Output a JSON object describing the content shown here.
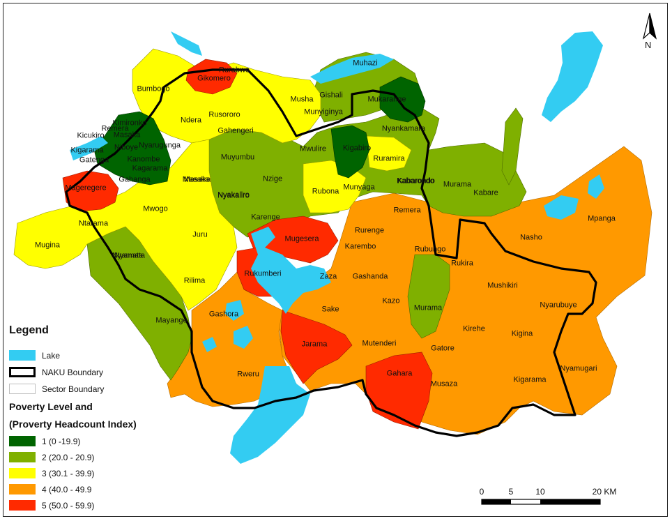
{
  "legend": {
    "title": "Legend",
    "items": [
      {
        "label": "Lake",
        "color": "#33ccf2"
      },
      {
        "label": "NAKU Boundary",
        "color": "#000000"
      },
      {
        "label": "Sector Boundary",
        "color": "#bfbfbf"
      }
    ]
  },
  "poverty_legend": {
    "title_line1": "Poverty Level and",
    "title_line2": "(Proverty Headcount Index)",
    "items": [
      {
        "label": "1 (0 -19.9)",
        "color": "#006400"
      },
      {
        "label": "2 (20.0 - 20.9)",
        "color": "#7fb000"
      },
      {
        "label": "3 (30.1 - 39.9)",
        "color": "#ffff00"
      },
      {
        "label": "4 (40.0 - 49.9",
        "color": "#ff9900"
      },
      {
        "label": "5 (50.0 - 59.9)",
        "color": "#ff2a00"
      }
    ]
  },
  "north_arrow": {
    "label": "N",
    "icon": "north-arrow-icon"
  },
  "scale_bar": {
    "ticks": [
      "0",
      "5",
      "10",
      "20 KM"
    ]
  },
  "sectors": [
    {
      "name": "Kigarama",
      "level": 4
    },
    {
      "name": "Gahara",
      "level": 5
    },
    {
      "name": "Jarama",
      "level": 5
    },
    {
      "name": "Gikomero",
      "level": 5
    },
    {
      "name": "Masaka",
      "level": 3
    },
    {
      "name": "Mugesera",
      "level": 5
    },
    {
      "name": "Rukumberi",
      "level": 5
    },
    {
      "name": "Muhazi",
      "level": 2
    },
    {
      "name": "Mukarange",
      "level": 1
    },
    {
      "name": "Nyamata",
      "level": 2
    },
    {
      "name": "Mpanga",
      "level": 4
    },
    {
      "name": "Nasho",
      "level": 4
    },
    {
      "name": "Rusororo",
      "level": 3
    },
    {
      "name": "Gahengeri",
      "level": 3
    },
    {
      "name": "Rubona",
      "level": 3
    },
    {
      "name": "Kigabiro",
      "level": 1
    },
    {
      "name": "Munyaga",
      "level": 3
    },
    {
      "name": "Ruramira",
      "level": 3
    },
    {
      "name": "Mwulire",
      "level": 2
    },
    {
      "name": "Nzige",
      "level": 2
    },
    {
      "name": "Karenge",
      "level": 2
    },
    {
      "name": "Nyakaliro",
      "level": 2
    },
    {
      "name": "Muyumbu",
      "level": 2
    },
    {
      "name": "Mwogo",
      "level": 3
    },
    {
      "name": "Juru",
      "level": 3
    },
    {
      "name": "Rilima",
      "level": 3
    },
    {
      "name": "Ntarama",
      "level": 3
    },
    {
      "name": "Mugina",
      "level": 3
    },
    {
      "name": "Mayange",
      "level": 2
    },
    {
      "name": "Gashora",
      "level": 4
    },
    {
      "name": "Rweru",
      "level": 4
    },
    {
      "name": "Zaza",
      "level": 4
    },
    {
      "name": "Sake",
      "level": 4
    },
    {
      "name": "Kazo",
      "level": 4
    },
    {
      "name": "Gashanda",
      "level": 4
    },
    {
      "name": "Karembo",
      "level": 4
    },
    {
      "name": "Rurenge",
      "level": 4
    },
    {
      "name": "Remera",
      "level": 4
    },
    {
      "name": "Kabarondo",
      "level": 2
    },
    {
      "name": "Murama",
      "level": 2
    },
    {
      "name": "Kabare",
      "level": 2
    },
    {
      "name": "Rukira",
      "level": 4
    },
    {
      "name": "Mushikiri",
      "level": 4
    },
    {
      "name": "Nyarubuye",
      "level": 4
    },
    {
      "name": "Kirehe",
      "level": 4
    },
    {
      "name": "Kigina",
      "level": 4
    },
    {
      "name": "Gatore",
      "level": 4
    },
    {
      "name": "Musaza",
      "level": 4
    },
    {
      "name": "Nyamugari",
      "level": 4
    },
    {
      "name": "Mutenderi",
      "level": 4
    },
    {
      "name": "Nyankamara",
      "level": 2
    },
    {
      "name": "Gishali",
      "level": 2
    },
    {
      "name": "Munyiginya",
      "level": 3
    },
    {
      "name": "Musha",
      "level": 3
    },
    {
      "name": "Rubungo",
      "level": 2
    },
    {
      "name": "Rurabwe",
      "level": 3
    },
    {
      "name": "Bumbogo",
      "level": 3
    },
    {
      "name": "Ndera",
      "level": 3
    },
    {
      "name": "Gahanga",
      "level": 4
    },
    {
      "name": "Kagarama",
      "level": 1
    },
    {
      "name": "Kanombe",
      "level": 1
    },
    {
      "name": "Nyarugunga",
      "level": 1
    },
    {
      "name": "Niboye",
      "level": 1
    },
    {
      "name": "Kimironko",
      "level": 1
    },
    {
      "name": "Remera",
      "level": 1
    },
    {
      "name": "Kicukiro",
      "level": 1
    },
    {
      "name": "Kigarama",
      "level": 1
    },
    {
      "name": "Gatenga",
      "level": 1
    },
    {
      "name": "Masaka",
      "level": 1
    },
    {
      "name": "Kabarondo",
      "level": 2
    },
    {
      "name": "Rubungo",
      "level": 2
    },
    {
      "name": "Murama",
      "level": 2
    },
    {
      "name": "Nyamata",
      "level": 2
    },
    {
      "name": "Kigarama",
      "level": 4
    },
    {
      "name": "Masaka",
      "level": 3
    },
    {
      "name": "Mageregere",
      "level": 5
    },
    {
      "name": "Nyakaliro",
      "level": 2
    },
    {
      "name": "Gahara",
      "level": 5
    }
  ]
}
